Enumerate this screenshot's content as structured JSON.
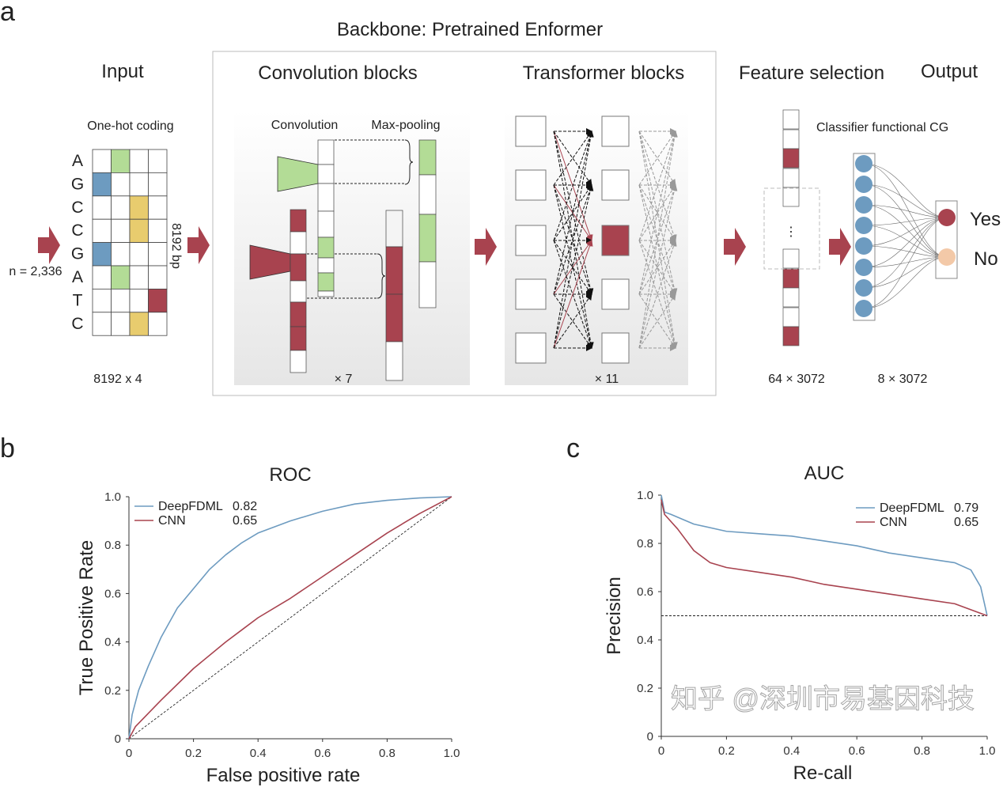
{
  "panels": {
    "a": "a",
    "b": "b",
    "c": "c"
  },
  "diagram": {
    "backbone_title": "Backbone: Pretrained Enformer",
    "headers": {
      "input": "Input",
      "convolution": "Convolution blocks",
      "transformer": "Transformer blocks",
      "feature_selection": "Feature selection",
      "output": "Output"
    },
    "input": {
      "one_hot_label": "One-hot coding",
      "bases": [
        "A",
        "G",
        "C",
        "C",
        "G",
        "A",
        "T",
        "C"
      ],
      "encoding_columns": [
        1,
        0,
        2,
        2,
        0,
        1,
        3,
        2
      ],
      "n_label": "n = 2,336",
      "length_label": "8192 bp",
      "shape_label": "8192 x 4"
    },
    "conv": {
      "convolution_label": "Convolution",
      "pooling_label": "Max-pooling",
      "repeat_label": "× 7"
    },
    "transformer": {
      "repeat_label": "× 11"
    },
    "features": {
      "classifier_label": "Classifier functional CG",
      "shape_left": "64 × 3072",
      "shape_right": "8 × 3072",
      "ellipsis": "⋮"
    },
    "output": {
      "yes": "Yes",
      "no": "No"
    },
    "colors": {
      "red": "#a8434f",
      "green": "#b3dc96",
      "blue": "#6d9bc0",
      "yellow": "#e8cc6e",
      "peach": "#f3c9a8"
    }
  },
  "chart_data": [
    {
      "type": "line",
      "title": "ROC",
      "xlabel": "False positive rate",
      "ylabel": "True Positive Rate",
      "xlim": [
        0,
        1
      ],
      "ylim": [
        0,
        1
      ],
      "xticks": [
        "0",
        "0.2",
        "0.4",
        "0.6",
        "0.8",
        "1.0"
      ],
      "yticks": [
        "0",
        "0.2",
        "0.4",
        "0.6",
        "0.8",
        "1.0"
      ],
      "legend_position": "top-left",
      "baseline": {
        "style": "dashed",
        "points": [
          [
            0,
            0
          ],
          [
            1,
            1
          ]
        ]
      },
      "series": [
        {
          "name": "DeepFDML",
          "auc": "0.82",
          "color": "#6d9bc0",
          "points": [
            [
              0,
              0
            ],
            [
              0.01,
              0.1
            ],
            [
              0.03,
              0.2
            ],
            [
              0.06,
              0.3
            ],
            [
              0.1,
              0.42
            ],
            [
              0.15,
              0.54
            ],
            [
              0.2,
              0.62
            ],
            [
              0.25,
              0.7
            ],
            [
              0.3,
              0.76
            ],
            [
              0.35,
              0.81
            ],
            [
              0.4,
              0.85
            ],
            [
              0.5,
              0.9
            ],
            [
              0.6,
              0.94
            ],
            [
              0.7,
              0.97
            ],
            [
              0.8,
              0.985
            ],
            [
              0.9,
              0.995
            ],
            [
              1,
              1
            ]
          ]
        },
        {
          "name": "CNN",
          "auc": "0.65",
          "color": "#a8434f",
          "points": [
            [
              0,
              0
            ],
            [
              0.02,
              0.05
            ],
            [
              0.1,
              0.16
            ],
            [
              0.2,
              0.29
            ],
            [
              0.3,
              0.4
            ],
            [
              0.35,
              0.45
            ],
            [
              0.4,
              0.5
            ],
            [
              0.5,
              0.58
            ],
            [
              0.6,
              0.67
            ],
            [
              0.7,
              0.76
            ],
            [
              0.8,
              0.85
            ],
            [
              0.9,
              0.93
            ],
            [
              1,
              1
            ]
          ]
        }
      ]
    },
    {
      "type": "line",
      "title": "AUC",
      "xlabel": "Re-call",
      "ylabel": "Precision",
      "xlim": [
        0,
        1
      ],
      "ylim": [
        0,
        1
      ],
      "xticks": [
        "0",
        "0.2",
        "0.4",
        "0.6",
        "0.8",
        "1.0"
      ],
      "yticks": [
        "0",
        "0.2",
        "0.4",
        "0.6",
        "0.8",
        "1.0"
      ],
      "legend_position": "top-right",
      "baseline": {
        "style": "dashed",
        "points": [
          [
            0,
            0.5
          ],
          [
            1,
            0.5
          ]
        ]
      },
      "series": [
        {
          "name": "DeepFDML",
          "auc": "0.79",
          "color": "#6d9bc0",
          "points": [
            [
              0,
              1.0
            ],
            [
              0.01,
              0.93
            ],
            [
              0.03,
              0.92
            ],
            [
              0.1,
              0.88
            ],
            [
              0.2,
              0.85
            ],
            [
              0.3,
              0.84
            ],
            [
              0.4,
              0.83
            ],
            [
              0.5,
              0.81
            ],
            [
              0.6,
              0.79
            ],
            [
              0.7,
              0.76
            ],
            [
              0.8,
              0.74
            ],
            [
              0.9,
              0.72
            ],
            [
              0.95,
              0.69
            ],
            [
              0.98,
              0.62
            ],
            [
              1,
              0.5
            ]
          ]
        },
        {
          "name": "CNN",
          "auc": "0.65",
          "color": "#a8434f",
          "points": [
            [
              0,
              0.98
            ],
            [
              0.01,
              0.92
            ],
            [
              0.05,
              0.86
            ],
            [
              0.1,
              0.77
            ],
            [
              0.15,
              0.72
            ],
            [
              0.2,
              0.7
            ],
            [
              0.3,
              0.68
            ],
            [
              0.4,
              0.66
            ],
            [
              0.5,
              0.63
            ],
            [
              0.6,
              0.61
            ],
            [
              0.7,
              0.59
            ],
            [
              0.8,
              0.57
            ],
            [
              0.9,
              0.55
            ],
            [
              1,
              0.5
            ]
          ]
        }
      ]
    }
  ],
  "watermark": "知乎 @深圳市易基因科技"
}
